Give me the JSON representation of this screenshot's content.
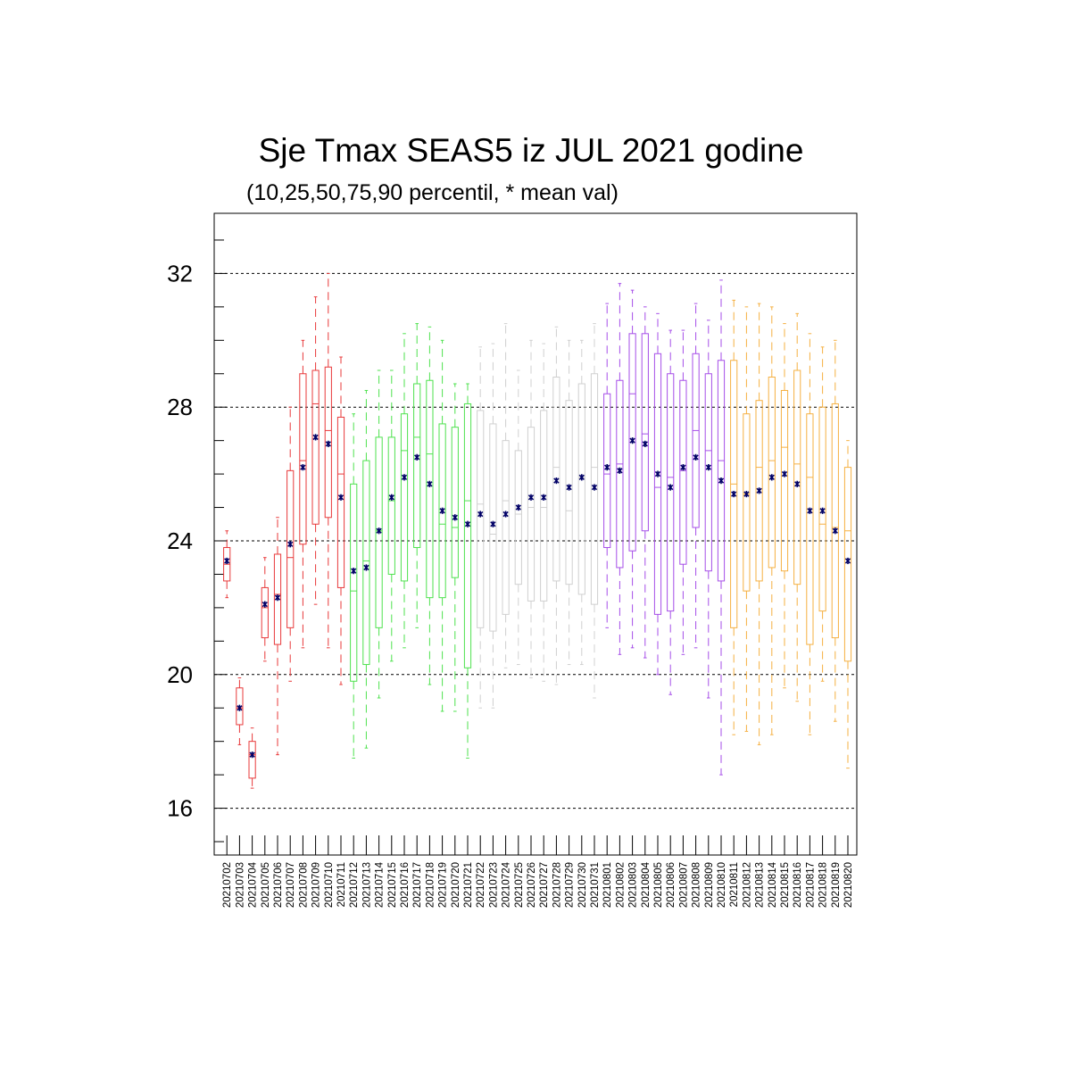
{
  "chart_data": {
    "type": "box",
    "title": "Sje Tmax SEAS5 iz JUL 2021 godine",
    "subtitle": "(10,25,50,75,90 percentil, * mean val)",
    "xlabel": "",
    "ylabel": "",
    "ylim": [
      14.6,
      33.8
    ],
    "yticks": [
      16,
      20,
      24,
      28,
      32
    ],
    "grid": "dashed horizontal at major ticks",
    "mean_marker": "*",
    "colors": {
      "20210702-20210711": "#e8393a",
      "20210712-20210721": "#4ee24e",
      "20210722-20210731": "#d0d0d0",
      "20210801-20210810": "#a64ee8",
      "20210811-20210820": "#f5b042",
      "mean": "#000066"
    },
    "x": [
      "20210702",
      "20210703",
      "20210704",
      "20210705",
      "20210706",
      "20210707",
      "20210708",
      "20210709",
      "20210710",
      "20210711",
      "20210712",
      "20210713",
      "20210714",
      "20210715",
      "20210716",
      "20210717",
      "20210718",
      "20210719",
      "20210720",
      "20210721",
      "20210722",
      "20210723",
      "20210724",
      "20210725",
      "20210726",
      "20210727",
      "20210728",
      "20210729",
      "20210730",
      "20210731",
      "20210801",
      "20210802",
      "20210803",
      "20210804",
      "20210805",
      "20210806",
      "20210807",
      "20210808",
      "20210809",
      "20210810",
      "20210811",
      "20210812",
      "20210813",
      "20210814",
      "20210815",
      "20210816",
      "20210817",
      "20210818",
      "20210819",
      "20210820"
    ],
    "boxes": [
      {
        "p10": 22.3,
        "p25": 22.8,
        "p50": 23.3,
        "p75": 23.8,
        "p90": 24.3,
        "mean": 23.4
      },
      {
        "p10": 17.9,
        "p25": 18.5,
        "p50": 19.0,
        "p75": 19.6,
        "p90": 19.9,
        "mean": 19.0
      },
      {
        "p10": 16.6,
        "p25": 16.9,
        "p50": 17.6,
        "p75": 18.0,
        "p90": 18.4,
        "mean": 17.6
      },
      {
        "p10": 20.4,
        "p25": 21.1,
        "p50": 22.0,
        "p75": 22.6,
        "p90": 23.5,
        "mean": 22.1
      },
      {
        "p10": 17.6,
        "p25": 20.9,
        "p50": 22.4,
        "p75": 23.6,
        "p90": 24.7,
        "mean": 22.3
      },
      {
        "p10": 19.8,
        "p25": 21.4,
        "p50": 23.5,
        "p75": 26.1,
        "p90": 28.0,
        "mean": 23.9
      },
      {
        "p10": 20.8,
        "p25": 23.9,
        "p50": 26.4,
        "p75": 29.0,
        "p90": 30.0,
        "mean": 26.2
      },
      {
        "p10": 22.1,
        "p25": 24.5,
        "p50": 28.1,
        "p75": 29.1,
        "p90": 31.3,
        "mean": 27.1
      },
      {
        "p10": 20.8,
        "p25": 24.7,
        "p50": 27.3,
        "p75": 29.2,
        "p90": 32.0,
        "mean": 26.9
      },
      {
        "p10": 19.7,
        "p25": 22.6,
        "p50": 26.0,
        "p75": 27.7,
        "p90": 29.5,
        "mean": 25.3
      },
      {
        "p10": 17.5,
        "p25": 19.8,
        "p50": 22.5,
        "p75": 25.7,
        "p90": 27.8,
        "mean": 23.1
      },
      {
        "p10": 17.8,
        "p25": 20.3,
        "p50": 23.4,
        "p75": 26.4,
        "p90": 28.5,
        "mean": 23.2
      },
      {
        "p10": 19.3,
        "p25": 21.4,
        "p50": 24.3,
        "p75": 27.1,
        "p90": 29.1,
        "mean": 24.3
      },
      {
        "p10": 20.4,
        "p25": 23.0,
        "p50": 25.2,
        "p75": 27.1,
        "p90": 29.1,
        "mean": 25.3
      },
      {
        "p10": 20.8,
        "p25": 22.8,
        "p50": 26.7,
        "p75": 27.8,
        "p90": 30.2,
        "mean": 25.9
      },
      {
        "p10": 21.4,
        "p25": 23.8,
        "p50": 27.1,
        "p75": 28.7,
        "p90": 30.5,
        "mean": 26.5
      },
      {
        "p10": 19.7,
        "p25": 22.3,
        "p50": 26.6,
        "p75": 28.8,
        "p90": 30.4,
        "mean": 25.7
      },
      {
        "p10": 18.9,
        "p25": 22.3,
        "p50": 24.5,
        "p75": 27.5,
        "p90": 30.0,
        "mean": 24.9
      },
      {
        "p10": 18.9,
        "p25": 22.9,
        "p50": 24.4,
        "p75": 27.4,
        "p90": 28.7,
        "mean": 24.7
      },
      {
        "p10": 17.5,
        "p25": 20.2,
        "p50": 25.2,
        "p75": 28.1,
        "p90": 28.7,
        "mean": 24.5
      },
      {
        "p10": 19.0,
        "p25": 21.4,
        "p50": 25.1,
        "p75": 27.9,
        "p90": 29.8,
        "mean": 24.8
      },
      {
        "p10": 19.0,
        "p25": 21.3,
        "p50": 24.2,
        "p75": 27.5,
        "p90": 29.9,
        "mean": 24.5
      },
      {
        "p10": 20.2,
        "p25": 21.8,
        "p50": 25.2,
        "p75": 27.0,
        "p90": 30.5,
        "mean": 24.8
      },
      {
        "p10": 20.3,
        "p25": 22.7,
        "p50": 24.8,
        "p75": 26.7,
        "p90": 29.1,
        "mean": 25.0
      },
      {
        "p10": 19.9,
        "p25": 22.2,
        "p50": 25.0,
        "p75": 27.4,
        "p90": 30.0,
        "mean": 25.3
      },
      {
        "p10": 19.8,
        "p25": 22.2,
        "p50": 25.0,
        "p75": 27.9,
        "p90": 29.9,
        "mean": 25.3
      },
      {
        "p10": 19.7,
        "p25": 22.8,
        "p50": 26.2,
        "p75": 28.9,
        "p90": 30.4,
        "mean": 25.8
      },
      {
        "p10": 20.3,
        "p25": 22.7,
        "p50": 24.9,
        "p75": 28.2,
        "p90": 30.0,
        "mean": 25.6
      },
      {
        "p10": 20.3,
        "p25": 22.4,
        "p50": 25.9,
        "p75": 28.7,
        "p90": 30.0,
        "mean": 25.9
      },
      {
        "p10": 19.3,
        "p25": 22.1,
        "p50": 26.2,
        "p75": 29.0,
        "p90": 30.5,
        "mean": 25.6
      },
      {
        "p10": 21.4,
        "p25": 23.8,
        "p50": 26.0,
        "p75": 28.4,
        "p90": 31.1,
        "mean": 26.2
      },
      {
        "p10": 20.6,
        "p25": 23.2,
        "p50": 26.3,
        "p75": 28.8,
        "p90": 31.7,
        "mean": 26.1
      },
      {
        "p10": 20.8,
        "p25": 23.7,
        "p50": 28.4,
        "p75": 30.2,
        "p90": 31.5,
        "mean": 27.0
      },
      {
        "p10": 20.5,
        "p25": 24.3,
        "p50": 27.2,
        "p75": 30.2,
        "p90": 31.0,
        "mean": 26.9
      },
      {
        "p10": 20.0,
        "p25": 21.8,
        "p50": 25.6,
        "p75": 29.6,
        "p90": 30.8,
        "mean": 26.0
      },
      {
        "p10": 19.4,
        "p25": 21.9,
        "p50": 25.9,
        "p75": 29.0,
        "p90": 30.3,
        "mean": 25.6
      },
      {
        "p10": 20.6,
        "p25": 23.3,
        "p50": 26.1,
        "p75": 28.8,
        "p90": 30.3,
        "mean": 26.2
      },
      {
        "p10": 20.8,
        "p25": 24.4,
        "p50": 27.3,
        "p75": 29.6,
        "p90": 31.1,
        "mean": 26.5
      },
      {
        "p10": 19.3,
        "p25": 23.1,
        "p50": 26.7,
        "p75": 29.0,
        "p90": 30.6,
        "mean": 26.2
      },
      {
        "p10": 17.0,
        "p25": 22.8,
        "p50": 26.4,
        "p75": 29.4,
        "p90": 31.8,
        "mean": 25.8
      },
      {
        "p10": 18.2,
        "p25": 21.4,
        "p50": 25.7,
        "p75": 29.4,
        "p90": 31.2,
        "mean": 25.4
      },
      {
        "p10": 18.3,
        "p25": 22.5,
        "p50": 25.4,
        "p75": 27.8,
        "p90": 31.0,
        "mean": 25.4
      },
      {
        "p10": 17.9,
        "p25": 22.8,
        "p50": 26.2,
        "p75": 28.2,
        "p90": 31.1,
        "mean": 25.5
      },
      {
        "p10": 18.2,
        "p25": 23.2,
        "p50": 26.4,
        "p75": 28.9,
        "p90": 31.0,
        "mean": 25.9
      },
      {
        "p10": 19.6,
        "p25": 23.1,
        "p50": 26.8,
        "p75": 28.5,
        "p90": 30.5,
        "mean": 26.0
      },
      {
        "p10": 19.2,
        "p25": 22.7,
        "p50": 26.3,
        "p75": 29.1,
        "p90": 30.8,
        "mean": 25.7
      },
      {
        "p10": 18.2,
        "p25": 20.9,
        "p50": 25.9,
        "p75": 27.8,
        "p90": 30.2,
        "mean": 24.9
      },
      {
        "p10": 19.8,
        "p25": 21.9,
        "p50": 24.5,
        "p75": 28.0,
        "p90": 29.8,
        "mean": 24.9
      },
      {
        "p10": 18.6,
        "p25": 21.1,
        "p50": 24.4,
        "p75": 28.1,
        "p90": 30.0,
        "mean": 24.3
      },
      {
        "p10": 17.2,
        "p25": 20.4,
        "p50": 24.3,
        "p75": 26.2,
        "p90": 27.0,
        "mean": 23.4
      }
    ]
  }
}
